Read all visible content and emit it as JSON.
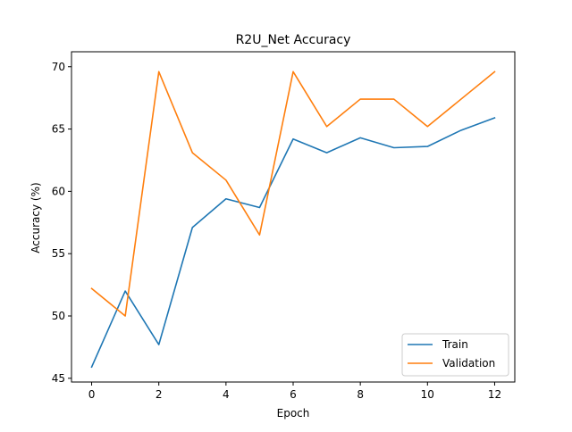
{
  "chart_data": {
    "type": "line",
    "title": "R2U_Net Accuracy",
    "xlabel": "Epoch",
    "ylabel": "Accuracy (%)",
    "xlim": [
      -0.6,
      12.6
    ],
    "ylim": [
      44.7,
      71.2
    ],
    "x_ticks": [
      0,
      2,
      4,
      6,
      8,
      10,
      12
    ],
    "y_ticks": [
      45,
      50,
      55,
      60,
      65,
      70
    ],
    "grid": false,
    "legend_position": "lower-right",
    "x": [
      0,
      1,
      2,
      3,
      4,
      5,
      6,
      7,
      8,
      9,
      10,
      11,
      12
    ],
    "series": [
      {
        "name": "Train",
        "color": "#1f77b4",
        "values": [
          45.9,
          52.0,
          47.7,
          57.1,
          59.4,
          58.7,
          64.2,
          63.1,
          64.3,
          63.5,
          63.6,
          64.9,
          65.9
        ]
      },
      {
        "name": "Validation",
        "color": "#ff7f0e",
        "values": [
          52.2,
          50.0,
          69.6,
          63.1,
          60.9,
          56.5,
          69.6,
          65.2,
          67.4,
          67.4,
          65.2,
          67.4,
          69.6
        ]
      }
    ]
  }
}
